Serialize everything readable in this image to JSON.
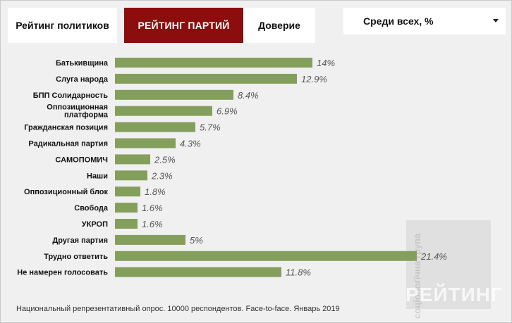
{
  "tabs": {
    "politicians": "Рейтинг политиков",
    "parties": "РЕЙТИНГ ПАРТИЙ",
    "trust": "Доверие"
  },
  "filter": {
    "selected": "Среди всех, %"
  },
  "chart_data": {
    "type": "bar",
    "orientation": "horizontal",
    "categories": [
      "Батькивщина",
      "Слуга народа",
      "БПП Солидарность",
      [
        "Оппозиционная",
        "платформа"
      ],
      "Гражданская позиция",
      "Радикальная партия",
      "САМОПОМИЧ",
      "Наши",
      "Оппозиционный блок",
      "Свобода",
      "УКРОП",
      "Другая партия",
      "Трудно ответить",
      "Не намерен голосовать"
    ],
    "values": [
      14,
      12.9,
      8.4,
      6.9,
      5.7,
      4.3,
      2.5,
      2.3,
      1.8,
      1.6,
      1.6,
      5,
      21.4,
      11.8
    ],
    "value_labels": [
      "14%",
      "12.9%",
      "8.4%",
      "6.9%",
      "5.7%",
      "4.3%",
      "2.5%",
      "2.3%",
      "1.8%",
      "1.6%",
      "1.6%",
      "5%",
      "21.4%",
      "11.8%"
    ],
    "bar_color": "#849f5c"
  },
  "watermark": {
    "side_text": "соціологічна група",
    "brand": "РЕЙТИНГ"
  },
  "footnote": "Национальный репрезентативный опрос. 10000 респондентов. Face-to-face. Январь 2019",
  "colors": {
    "active_tab": "#8c0d0d",
    "background": "#f0f0f0",
    "bar": "#849f5c"
  }
}
